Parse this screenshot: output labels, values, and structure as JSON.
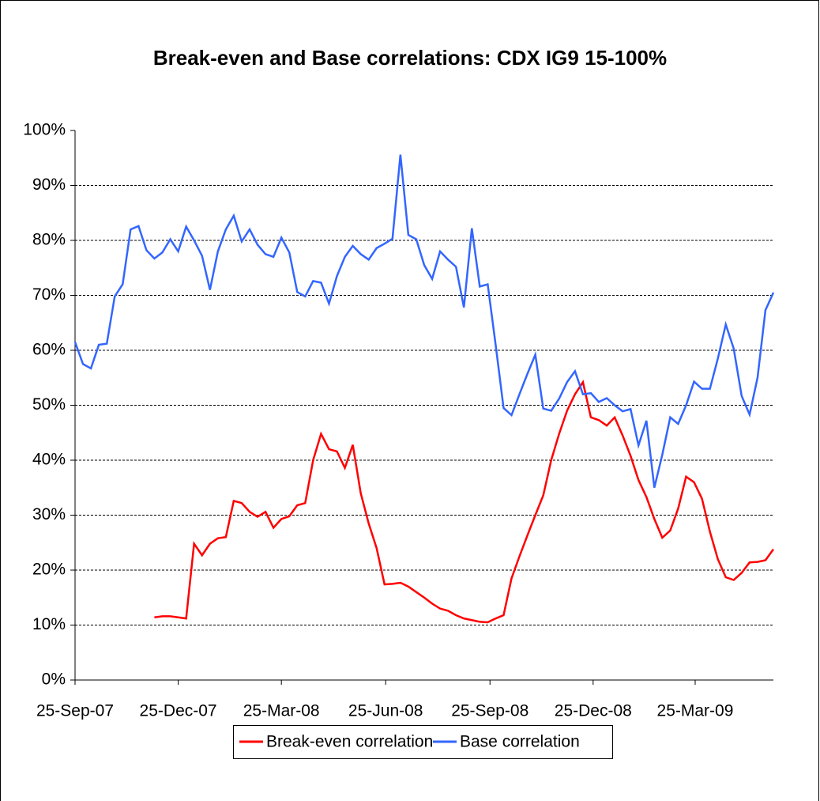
{
  "chart_data": {
    "type": "line",
    "title": "Break-even and Base correlations: CDX IG9 15-100%",
    "x": [
      "2007-09-25",
      "2007-10-02",
      "2007-10-09",
      "2007-10-16",
      "2007-10-23",
      "2007-10-30",
      "2007-11-06",
      "2007-11-13",
      "2007-11-20",
      "2007-11-27",
      "2007-12-04",
      "2007-12-11",
      "2007-12-18",
      "2007-12-25",
      "2008-01-01",
      "2008-01-08",
      "2008-01-15",
      "2008-01-22",
      "2008-01-29",
      "2008-02-05",
      "2008-02-12",
      "2008-02-19",
      "2008-02-26",
      "2008-03-04",
      "2008-03-11",
      "2008-03-18",
      "2008-03-25",
      "2008-04-01",
      "2008-04-08",
      "2008-04-15",
      "2008-04-22",
      "2008-04-29",
      "2008-05-06",
      "2008-05-13",
      "2008-05-20",
      "2008-05-27",
      "2008-06-03",
      "2008-06-10",
      "2008-06-17",
      "2008-06-24",
      "2008-07-01",
      "2008-07-08",
      "2008-07-15",
      "2008-07-22",
      "2008-07-29",
      "2008-08-05",
      "2008-08-12",
      "2008-08-19",
      "2008-08-26",
      "2008-09-02",
      "2008-09-09",
      "2008-09-16",
      "2008-09-23",
      "2008-09-30",
      "2008-10-07",
      "2008-10-14",
      "2008-10-21",
      "2008-10-28",
      "2008-11-04",
      "2008-11-11",
      "2008-11-18",
      "2008-11-25",
      "2008-12-02",
      "2008-12-09",
      "2008-12-16",
      "2008-12-23",
      "2008-12-30",
      "2009-01-06",
      "2009-01-13",
      "2009-01-20",
      "2009-01-27",
      "2009-02-03",
      "2009-02-10",
      "2009-02-17",
      "2009-02-24",
      "2009-03-03",
      "2009-03-10",
      "2009-03-17",
      "2009-03-24",
      "2009-03-31",
      "2009-04-07",
      "2009-04-14",
      "2009-04-21",
      "2009-04-28",
      "2009-05-05",
      "2009-05-12",
      "2009-05-19",
      "2009-05-26",
      "2009-06-02"
    ],
    "series": [
      {
        "name": "Break-even correlation",
        "color": "#ff0000",
        "values": [
          null,
          null,
          null,
          null,
          null,
          null,
          null,
          null,
          null,
          null,
          11.4,
          11.6,
          11.6,
          11.4,
          11.2,
          24.8,
          22.7,
          24.8,
          25.8,
          26,
          32.6,
          32.2,
          30.6,
          29.7,
          30.6,
          27.7,
          29.3,
          29.8,
          31.8,
          32.2,
          40,
          44.8,
          42,
          41.6,
          38.6,
          42.8,
          34,
          28.5,
          24,
          17.4,
          17.5,
          17.7,
          17,
          16,
          15,
          13.9,
          13,
          12.6,
          11.8,
          11.2,
          10.9,
          10.6,
          10.5,
          11.2,
          11.8,
          18.5,
          22.5,
          26.3,
          30,
          33.6,
          40,
          44.8,
          49,
          52,
          54.2,
          47.8,
          47.3,
          46.3,
          47.8,
          44.5,
          40.8,
          36.4,
          33.3,
          29.3,
          25.9,
          27.2,
          31.2,
          37,
          36,
          33,
          27,
          22,
          18.7,
          18.2,
          19.5,
          21.4,
          21.5,
          21.8,
          23.8
        ]
      },
      {
        "name": "Base correlation",
        "color": "#3366ff",
        "values": [
          61.5,
          57.5,
          56.7,
          61,
          61.2,
          69.8,
          72,
          82,
          82.6,
          78.2,
          76.7,
          77.8,
          80.2,
          78,
          82.5,
          80,
          77.2,
          71,
          78,
          82,
          84.5,
          79.8,
          82,
          79.2,
          77.5,
          77,
          80.5,
          77.8,
          70.6,
          69.8,
          72.6,
          72.3,
          68.5,
          73.5,
          77,
          79,
          77.5,
          76.5,
          78.6,
          79.4,
          80.3,
          95.6,
          81,
          80.2,
          75.5,
          73,
          78,
          76.5,
          75.2,
          67.8,
          82.2,
          71.6,
          72,
          61,
          49.5,
          48.2,
          52,
          55.7,
          59.2,
          49.4,
          49,
          51.2,
          54.2,
          56.2,
          52,
          52.2,
          50.6,
          51.3,
          50,
          48.9,
          49.3,
          42.7,
          47.2,
          35,
          41,
          47.8,
          46.6,
          50,
          54.3,
          53,
          53,
          58.5,
          64.7,
          60.3,
          51.7,
          48.3,
          55,
          67.3,
          70.5
        ]
      }
    ],
    "xlim": [
      "2007-09-25",
      "2009-06-02"
    ],
    "xticks": [
      {
        "value": "2007-09-25",
        "label": "25-Sep-07"
      },
      {
        "value": "2007-12-25",
        "label": "25-Dec-07"
      },
      {
        "value": "2008-03-25",
        "label": "25-Mar-08"
      },
      {
        "value": "2008-06-25",
        "label": "25-Jun-08"
      },
      {
        "value": "2008-09-25",
        "label": "25-Sep-08"
      },
      {
        "value": "2008-12-25",
        "label": "25-Dec-08"
      },
      {
        "value": "2009-03-25",
        "label": "25-Mar-09"
      }
    ],
    "ylim": [
      0,
      100
    ],
    "yticks": [
      {
        "value": 0,
        "label": "0%"
      },
      {
        "value": 10,
        "label": "10%"
      },
      {
        "value": 20,
        "label": "20%"
      },
      {
        "value": 30,
        "label": "30%"
      },
      {
        "value": 40,
        "label": "40%"
      },
      {
        "value": 50,
        "label": "50%"
      },
      {
        "value": 60,
        "label": "60%"
      },
      {
        "value": 70,
        "label": "70%"
      },
      {
        "value": 80,
        "label": "80%"
      },
      {
        "value": 90,
        "label": "90%"
      },
      {
        "value": 100,
        "label": "100%"
      }
    ],
    "grid": true,
    "legend": "bottom"
  }
}
